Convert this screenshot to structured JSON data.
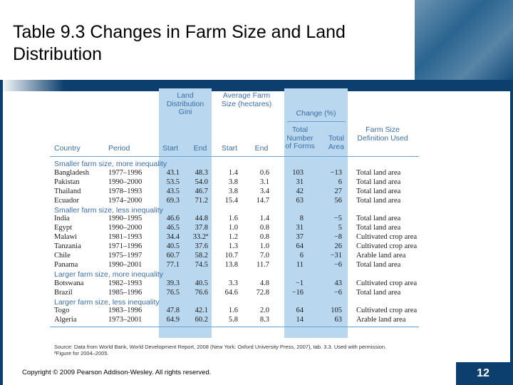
{
  "slide": {
    "title": "Table 9.3 Changes in Farm Size and Land Distribution",
    "copyright": "Copyright © 2009 Pearson Addison-Wesley. All rights reserved.",
    "page_number": "12"
  },
  "table": {
    "group_headers": {
      "gini": "Land Distribution Gini",
      "farm_size": "Average Farm Size (hectares)",
      "change": "Change (%)"
    },
    "columns": {
      "country": "Country",
      "period": "Period",
      "gini_start": "Start",
      "gini_end": "End",
      "size_start": "Start",
      "size_end": "End",
      "num_forms": "Total Number of Forms",
      "area": "Total Area",
      "definition": "Farm Size Definition Used"
    },
    "sections": [
      {
        "label": "Smaller farm size, more inequality",
        "rows": [
          {
            "country": "Bangladesh",
            "period": "1977–1996",
            "gs": "43.1",
            "ge": "48.3",
            "ss": "1.4",
            "se": "0.6",
            "nf": "103",
            "ta": "−13",
            "def": "Total land area"
          },
          {
            "country": "Pakistan",
            "period": "1990–2000",
            "gs": "53.5",
            "ge": "54.0",
            "ss": "3.8",
            "se": "3.1",
            "nf": "31",
            "ta": "6",
            "def": "Total land area"
          },
          {
            "country": "Thailand",
            "period": "1978–1993",
            "gs": "43.5",
            "ge": "46.7",
            "ss": "3.8",
            "se": "3.4",
            "nf": "42",
            "ta": "27",
            "def": "Total land area"
          },
          {
            "country": "Ecuador",
            "period": "1974–2000",
            "gs": "69.3",
            "ge": "71.2",
            "ss": "15.4",
            "se": "14.7",
            "nf": "63",
            "ta": "56",
            "def": "Total land area"
          }
        ]
      },
      {
        "label": "Smaller farm size, less inequality",
        "rows": [
          {
            "country": "India",
            "period": "1990–1995",
            "gs": "46.6",
            "ge": "44.8",
            "ss": "1.6",
            "se": "1.4",
            "nf": "8",
            "ta": "−5",
            "def": "Total land area"
          },
          {
            "country": "Egypt",
            "period": "1990–2000",
            "gs": "46.5",
            "ge": "37.8",
            "ss": "1.0",
            "se": "0.8",
            "nf": "31",
            "ta": "5",
            "def": "Total land area"
          },
          {
            "country": "Malawi",
            "period": "1981–1993",
            "gs": "34.4",
            "ge": "33.2ª",
            "ss": "1.2",
            "se": "0.8",
            "nf": "37",
            "ta": "−8",
            "def": "Cultivated crop area"
          },
          {
            "country": "Tanzania",
            "period": "1971–1996",
            "gs": "40.5",
            "ge": "37.6",
            "ss": "1.3",
            "se": "1.0",
            "nf": "64",
            "ta": "26",
            "def": "Cultivated crop area"
          },
          {
            "country": "Chile",
            "period": "1975–1997",
            "gs": "60.7",
            "ge": "58.2",
            "ss": "10.7",
            "se": "7.0",
            "nf": "6",
            "ta": "−31",
            "def": "Arable land area"
          },
          {
            "country": "Panama",
            "period": "1990–2001",
            "gs": "77.1",
            "ge": "74.5",
            "ss": "13.8",
            "se": "11.7",
            "nf": "11",
            "ta": "−6",
            "def": "Total land area"
          }
        ]
      },
      {
        "label": "Larger farm size, more inequality",
        "rows": [
          {
            "country": "Botswana",
            "period": "1982–1993",
            "gs": "39.3",
            "ge": "40.5",
            "ss": "3.3",
            "se": "4.8",
            "nf": "−1",
            "ta": "43",
            "def": "Cultivated crop area"
          },
          {
            "country": "Brazil",
            "period": "1985–1996",
            "gs": "76.5",
            "ge": "76.6",
            "ss": "64.6",
            "se": "72.8",
            "nf": "−16",
            "ta": "−6",
            "def": "Total land area"
          }
        ]
      },
      {
        "label": "Larger farm size, less inequality",
        "rows": [
          {
            "country": "Togo",
            "period": "1983–1996",
            "gs": "47.8",
            "ge": "42.1",
            "ss": "1.6",
            "se": "2.0",
            "nf": "64",
            "ta": "105",
            "def": "Cultivated crop area"
          },
          {
            "country": "Algeria",
            "period": "1973–2001",
            "gs": "64.9",
            "ge": "60.2",
            "ss": "5.8",
            "se": "8.3",
            "nf": "14",
            "ta": "63",
            "def": "Arable land area"
          }
        ]
      }
    ],
    "source": "Source: Data from World Bank, World Development Report, 2008 (New York: Oxford University Press, 2007), tab. 3.3. Used with permission.",
    "footnote": "ªFigure for 2004–2005."
  },
  "colors": {
    "header_blue": "#3b6ea5",
    "column_shade": "#b9d7ee",
    "theme_dark": "#0d3f6e"
  }
}
